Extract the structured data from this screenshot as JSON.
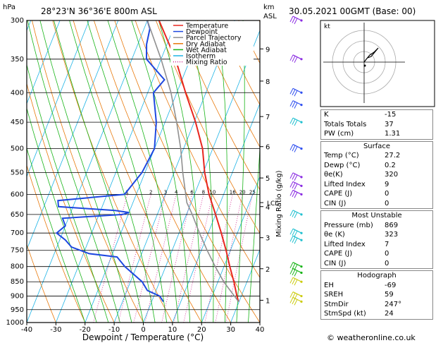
{
  "header": {
    "location": "28°23'N  36°36'E  800m  ASL",
    "datetime": "30.05.2021  00GMT  (Base: 00)",
    "hpa_label": "hPa",
    "km_label": "km",
    "asl_label": "ASL",
    "mixing_ratio_axis_label": "Mixing Ratio (g/kg)",
    "lcl_label": "LCL"
  },
  "legend": [
    {
      "label": "Temperature",
      "color": "#e8261f"
    },
    {
      "label": "Dewpoint",
      "color": "#1e48e0"
    },
    {
      "label": "Parcel Trajectory",
      "color": "#909090"
    },
    {
      "label": "Dry Adiabat",
      "color": "#e8780a"
    },
    {
      "label": "Wet Adiabat",
      "color": "#18b418"
    },
    {
      "label": "Isotherm",
      "color": "#1fb4e6"
    },
    {
      "label": "Mixing Ratio",
      "color": "#d0208f"
    }
  ],
  "chart_data": {
    "type": "line",
    "xlabel": "Dewpoint / Temperature (°C)",
    "xlim": [
      -40,
      40
    ],
    "x_ticks": [
      "-40",
      "-30",
      "-20",
      "-10",
      "0",
      "10",
      "20",
      "30",
      "40"
    ],
    "ylim_hpa": [
      1000,
      300
    ],
    "y_log_scale": true,
    "pressure_ticks": [
      300,
      350,
      400,
      450,
      500,
      550,
      600,
      650,
      700,
      750,
      800,
      850,
      900,
      950,
      1000
    ],
    "km_ticks": [
      {
        "km": "1",
        "p": 915
      },
      {
        "km": "2",
        "p": 807
      },
      {
        "km": "3",
        "p": 713
      },
      {
        "km": "4",
        "p": 630
      },
      {
        "km": "5",
        "p": 562
      },
      {
        "km": "6",
        "p": 496
      },
      {
        "km": "7",
        "p": 440
      },
      {
        "km": "8",
        "p": 382
      },
      {
        "km": "9",
        "p": 336
      }
    ],
    "mixing_ratio_labels": [
      "1",
      "2",
      "3",
      "4",
      "6",
      "8",
      "10",
      "16",
      "20",
      "25"
    ],
    "mixing_ratio_values": [
      1,
      2,
      3,
      4,
      6,
      8,
      10,
      16,
      20,
      25
    ],
    "lcl_p": 620,
    "series": [
      {
        "name": "Temperature",
        "color": "#e8261f",
        "points": [
          [
            920,
            29.8
          ],
          [
            900,
            28.5
          ],
          [
            850,
            25.5
          ],
          [
            800,
            22.0
          ],
          [
            750,
            18.5
          ],
          [
            700,
            14.5
          ],
          [
            650,
            10.0
          ],
          [
            600,
            5.0
          ],
          [
            550,
            0.5
          ],
          [
            500,
            -3.5
          ],
          [
            450,
            -9.5
          ],
          [
            400,
            -17
          ],
          [
            350,
            -25
          ],
          [
            300,
            -36
          ]
        ]
      },
      {
        "name": "Dewpoint",
        "color": "#1e48e0",
        "points": [
          [
            920,
            4
          ],
          [
            900,
            2
          ],
          [
            880,
            -3
          ],
          [
            850,
            -6
          ],
          [
            800,
            -14
          ],
          [
            770,
            -18
          ],
          [
            760,
            -28
          ],
          [
            740,
            -35
          ],
          [
            720,
            -38
          ],
          [
            700,
            -42
          ],
          [
            680,
            -40
          ],
          [
            660,
            -42
          ],
          [
            650,
            -22
          ],
          [
            645,
            -20
          ],
          [
            640,
            -25
          ],
          [
            630,
            -45
          ],
          [
            615,
            -46
          ],
          [
            600,
            -24
          ],
          [
            550,
            -21
          ],
          [
            500,
            -20
          ],
          [
            450,
            -23
          ],
          [
            400,
            -28
          ],
          [
            380,
            -26
          ],
          [
            350,
            -35
          ],
          [
            330,
            -37
          ],
          [
            310,
            -38
          ],
          [
            300,
            -40
          ]
        ]
      },
      {
        "name": "Parcel Trajectory",
        "color": "#909090",
        "points": [
          [
            920,
            29.8
          ],
          [
            850,
            22
          ],
          [
            800,
            17
          ],
          [
            750,
            12
          ],
          [
            700,
            7
          ],
          [
            650,
            2
          ],
          [
            620,
            -1.5
          ],
          [
            600,
            -3
          ],
          [
            550,
            -7
          ],
          [
            500,
            -11
          ],
          [
            450,
            -16
          ],
          [
            400,
            -22
          ],
          [
            350,
            -30
          ],
          [
            300,
            -40
          ]
        ]
      }
    ]
  },
  "wind_barbs_color_by_level": "purple (upper), blue (mid), cyan, green (low), yellow (surface)",
  "hodograph": {
    "label_kt": "kt"
  },
  "indices": {
    "top": [
      {
        "label": "K",
        "value": "-15"
      },
      {
        "label": "Totals Totals",
        "value": "37"
      },
      {
        "label": "PW (cm)",
        "value": "1.31"
      }
    ],
    "surface": {
      "title": "Surface",
      "rows": [
        {
          "label": "Temp (°C)",
          "value": "27.2"
        },
        {
          "label": "Dewp (°C)",
          "value": "0.2"
        },
        {
          "label": "θe(K)",
          "value": "320"
        },
        {
          "label": "Lifted Index",
          "value": "9"
        },
        {
          "label": "CAPE (J)",
          "value": "0"
        },
        {
          "label": "CIN (J)",
          "value": "0"
        }
      ]
    },
    "most_unstable": {
      "title": "Most Unstable",
      "rows": [
        {
          "label": "Pressure (mb)",
          "value": "869"
        },
        {
          "label": "θe (K)",
          "value": "323"
        },
        {
          "label": "Lifted Index",
          "value": "7"
        },
        {
          "label": "CAPE (J)",
          "value": "0"
        },
        {
          "label": "CIN (J)",
          "value": "0"
        }
      ]
    },
    "hodograph": {
      "title": "Hodograph",
      "rows": [
        {
          "label": "EH",
          "value": "-69"
        },
        {
          "label": "SREH",
          "value": "59"
        },
        {
          "label": "StmDir",
          "value": "247°"
        },
        {
          "label": "StmSpd (kt)",
          "value": "24"
        }
      ]
    }
  },
  "copyright": "© weatheronline.co.uk"
}
